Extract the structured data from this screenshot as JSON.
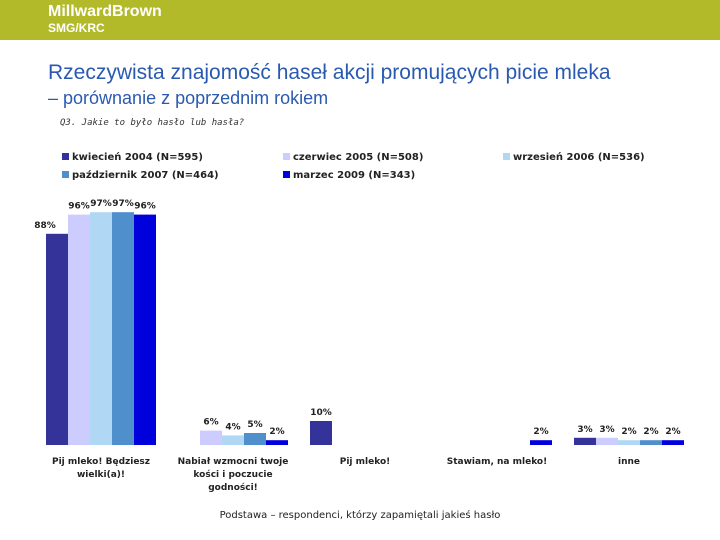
{
  "header": {
    "logo": "MillwardBrown",
    "sublogo": "SMG/KRC"
  },
  "chart_data": {
    "type": "bar",
    "title": "Rzeczywista znajomość haseł akcji promujących picie mleka",
    "subtitle": "– porównanie z poprzednim rokiem",
    "question": "Q3. Jakie to było hasło lub hasła?",
    "footnote": "Podstawa – respondenci, którzy zapamiętali jakieś hasło",
    "categories": [
      "Pij mleko! Będziesz wielki(a)!",
      "Nabiał wzmocni twoje kości i poczucie godności!",
      "Pij mleko!",
      "Stawiam, na mleko!",
      "inne"
    ],
    "series": [
      {
        "name": "kwiecień 2004 (N=595)",
        "color": "#333399",
        "values": [
          88,
          null,
          10,
          null,
          3
        ],
        "value_labels": [
          "88%",
          null,
          "10%",
          null,
          "3%"
        ]
      },
      {
        "name": "czerwiec 2005 (N=508)",
        "color": "#ccccff",
        "values": [
          96,
          6,
          null,
          null,
          3
        ],
        "value_labels": [
          "96%",
          "6%",
          null,
          null,
          "3%"
        ]
      },
      {
        "name": "wrzesień 2006 (N=536)",
        "color": "#b0d8f5",
        "values": [
          97,
          4,
          null,
          null,
          2
        ],
        "value_labels": [
          "97%",
          "4%",
          null,
          null,
          "2%"
        ]
      },
      {
        "name": "październik 2007 (N=464)",
        "color": "#4f8fcc",
        "values": [
          97,
          5,
          null,
          null,
          2
        ],
        "value_labels": [
          "97%",
          "5%",
          null,
          null,
          "2%"
        ]
      },
      {
        "name": "marzec 2009 (N=343)",
        "color": "#0000dd",
        "values": [
          96,
          2,
          null,
          2,
          2
        ],
        "value_labels": [
          "96%",
          "2%",
          null,
          "2%",
          "2%"
        ]
      }
    ]
  }
}
